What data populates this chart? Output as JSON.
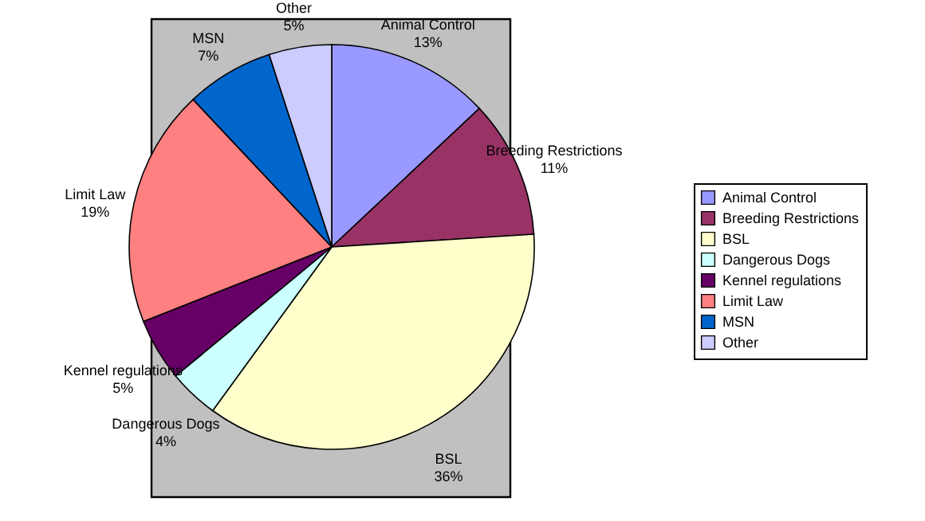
{
  "chart_data": {
    "type": "pie",
    "categories": [
      "Animal Control",
      "Breeding Restrictions",
      "BSL",
      "Dangerous Dogs",
      "Kennel regulations",
      "Limit Law",
      "MSN",
      "Other"
    ],
    "values": [
      13,
      11,
      36,
      4,
      5,
      19,
      7,
      5
    ],
    "value_labels": [
      "13%",
      "11%",
      "36%",
      "4%",
      "5%",
      "19%",
      "7%",
      "5%"
    ],
    "colors": [
      "#9999ff",
      "#993366",
      "#ffffcc",
      "#ccffff",
      "#660066",
      "#ff8080",
      "#0066cc",
      "#ccccff"
    ],
    "legend": "right"
  }
}
